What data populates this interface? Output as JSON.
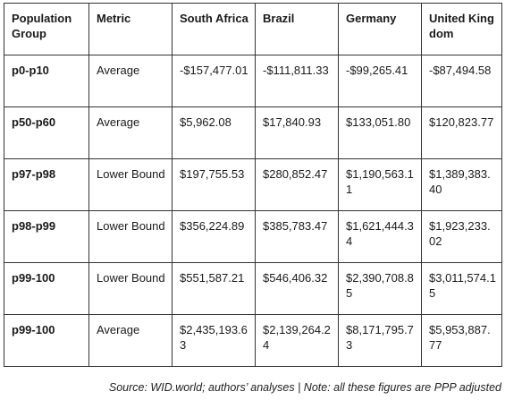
{
  "table": {
    "columns": [
      "Population Group",
      "Metric",
      "South Africa",
      "Brazil",
      "Germany",
      "United Kingdom"
    ],
    "rows": [
      [
        "p0-p10",
        "Average",
        "-$157,477.01",
        "-$111,811.33",
        "-$99,265.41",
        "-$87,494.58"
      ],
      [
        "p50-p60",
        "Average",
        "$5,962.08",
        "$17,840.93",
        "$133,051.80",
        "$120,823.77"
      ],
      [
        "p97-p98",
        "Lower Bound",
        "$197,755.53",
        "$280,852.47",
        "$1,190,563.11",
        "$1,389,383.40"
      ],
      [
        "p98-p99",
        "Lower Bound",
        "$356,224.89",
        "$385,783.47",
        "$1,621,444.34",
        "$1,923,233.02"
      ],
      [
        "p99-100",
        "Lower Bound",
        "$551,587.21",
        "$546,406.32",
        "$2,390,708.85",
        "$3,011,574.15"
      ],
      [
        "p99-100",
        "Average",
        "$2,435,193.63",
        "$2,139,264.24",
        "$8,171,795.73",
        "$5,953,887.77"
      ]
    ]
  },
  "footnote": "Source: WID.world; authors’ analyses | Note: all these figures are PPP adjusted"
}
